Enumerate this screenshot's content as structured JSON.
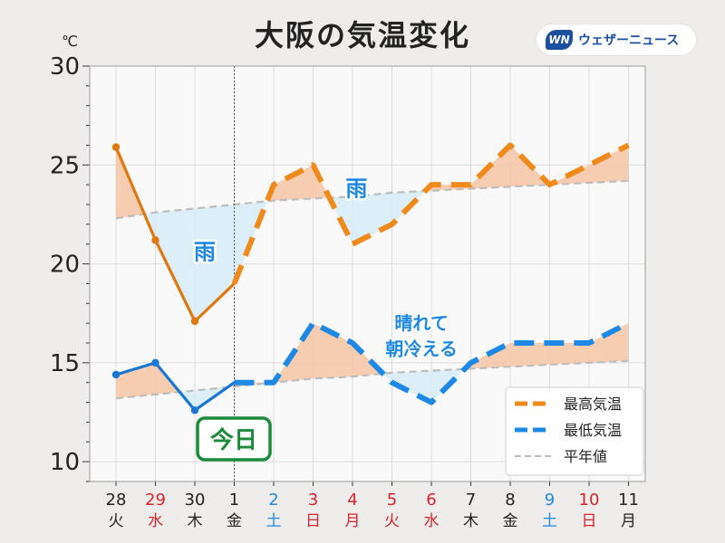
{
  "brand": {
    "logo_text": "WN",
    "name": "ウェザーニュース",
    "color": "#1b4fa0"
  },
  "chart_data": {
    "type": "line",
    "title": "大阪の気温変化",
    "y_unit": "℃",
    "ylim": [
      9,
      30
    ],
    "yticks": [
      10,
      15,
      20,
      25,
      30
    ],
    "grid": true,
    "legend_position": "bottom-right",
    "x": [
      {
        "day": "28",
        "weekday": "火",
        "color": "#222222"
      },
      {
        "day": "29",
        "weekday": "水",
        "color": "#d8232a"
      },
      {
        "day": "30",
        "weekday": "木",
        "color": "#222222"
      },
      {
        "day": "1",
        "weekday": "金",
        "color": "#222222"
      },
      {
        "day": "2",
        "weekday": "土",
        "color": "#1e88e5"
      },
      {
        "day": "3",
        "weekday": "日",
        "color": "#d8232a"
      },
      {
        "day": "4",
        "weekday": "月",
        "color": "#d8232a"
      },
      {
        "day": "5",
        "weekday": "火",
        "color": "#d8232a"
      },
      {
        "day": "6",
        "weekday": "水",
        "color": "#d8232a"
      },
      {
        "day": "7",
        "weekday": "木",
        "color": "#222222"
      },
      {
        "day": "8",
        "weekday": "金",
        "color": "#222222"
      },
      {
        "day": "9",
        "weekday": "土",
        "color": "#1e88e5"
      },
      {
        "day": "10",
        "weekday": "日",
        "color": "#d8232a"
      },
      {
        "day": "11",
        "weekday": "月",
        "color": "#222222"
      }
    ],
    "today_index": 3,
    "today_label": "今日",
    "series": [
      {
        "name": "最高気温",
        "color": "#f08a1c",
        "observed_color": "#e07810",
        "values": [
          25.9,
          21.2,
          17.1,
          19,
          24,
          25,
          21,
          22,
          24,
          24,
          26,
          24,
          25,
          26
        ]
      },
      {
        "name": "最低気温",
        "color": "#1e88e5",
        "observed_color": "#1877d2",
        "values": [
          14.4,
          15,
          12.6,
          14,
          14,
          17,
          16,
          14,
          13,
          15,
          16,
          16,
          16,
          17
        ]
      },
      {
        "name": "平年値",
        "color": "#bdbdbd",
        "values_high": [
          22.3,
          22.6,
          22.8,
          23.0,
          23.2,
          23.3,
          23.4,
          23.6,
          23.7,
          23.8,
          23.9,
          24.0,
          24.1,
          24.2
        ],
        "values_low": [
          13.2,
          13.4,
          13.6,
          13.8,
          14.0,
          14.2,
          14.3,
          14.5,
          14.6,
          14.7,
          14.8,
          14.9,
          15.0,
          15.1
        ]
      }
    ],
    "annotations": [
      {
        "text": "雨",
        "x": 2.25,
        "y": 20.6,
        "style": "box"
      },
      {
        "text": "雨",
        "x": 6.1,
        "y": 23.8,
        "style": "box"
      },
      {
        "text": "晴れて",
        "x": 7.75,
        "y": 17.0,
        "style": "plain"
      },
      {
        "text": "朝冷える",
        "x": 7.75,
        "y": 15.7,
        "style": "plain"
      }
    ],
    "colors": {
      "above_normal_fill": "#f6c6a6",
      "below_normal_fill": "#d6ecf8",
      "annotation": "#1e88e5",
      "today": "#1b8a3a"
    }
  }
}
